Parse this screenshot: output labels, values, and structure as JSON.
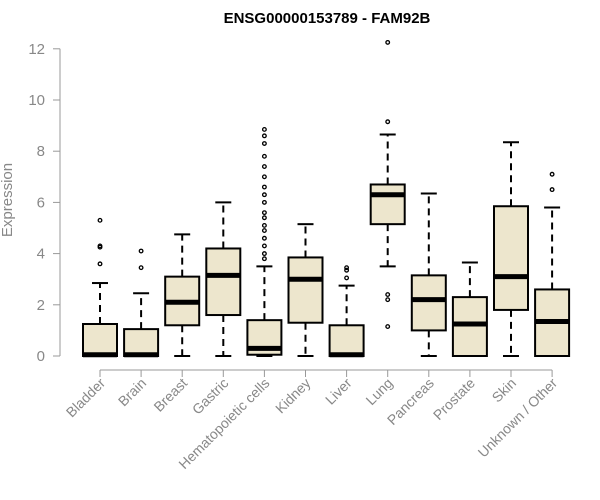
{
  "chart_data": {
    "type": "box",
    "title": "ENSG00000153789 - FAM92B",
    "xlabel": "",
    "ylabel": "Expression",
    "ylim": [
      0,
      12.3
    ],
    "yticks": [
      0,
      2,
      4,
      6,
      8,
      10,
      12
    ],
    "box_fill": "#ede6cd",
    "categories": [
      "Bladder",
      "Brain",
      "Breast",
      "Gastric",
      "Hematopoietic cells",
      "Kidney",
      "Liver",
      "Lung",
      "Pancreas",
      "Prostate",
      "Skin",
      "Unknown / Other"
    ],
    "boxes": [
      {
        "whislo": 0,
        "q1": 0,
        "med": 0.05,
        "q3": 1.25,
        "whishi": 2.85,
        "fliers": [
          3.6,
          4.25,
          4.3,
          5.3
        ]
      },
      {
        "whislo": 0,
        "q1": 0,
        "med": 0.05,
        "q3": 1.05,
        "whishi": 2.45,
        "fliers": [
          3.45,
          4.1
        ]
      },
      {
        "whislo": 0,
        "q1": 1.2,
        "med": 2.1,
        "q3": 3.1,
        "whishi": 4.75,
        "fliers": []
      },
      {
        "whislo": 0,
        "q1": 1.6,
        "med": 3.15,
        "q3": 4.2,
        "whishi": 6.0,
        "fliers": []
      },
      {
        "whislo": 0,
        "q1": 0.05,
        "med": 0.3,
        "q3": 1.4,
        "whishi": 3.5,
        "fliers": [
          3.8,
          4.0,
          4.3,
          4.6,
          4.9,
          5.1,
          5.4,
          5.6,
          6.0,
          6.3,
          6.6,
          7.0,
          7.4,
          7.8,
          8.3,
          8.6,
          8.85
        ]
      },
      {
        "whislo": 0,
        "q1": 1.3,
        "med": 3.0,
        "q3": 3.85,
        "whishi": 5.15,
        "fliers": []
      },
      {
        "whislo": 0,
        "q1": 0,
        "med": 0.05,
        "q3": 1.2,
        "whishi": 2.75,
        "fliers": [
          3.05,
          3.35,
          3.45
        ]
      },
      {
        "whislo": 3.5,
        "q1": 5.15,
        "med": 6.3,
        "q3": 6.7,
        "whishi": 8.65,
        "fliers": [
          1.15,
          2.2,
          2.4,
          9.15,
          12.25
        ]
      },
      {
        "whislo": 0,
        "q1": 1.0,
        "med": 2.2,
        "q3": 3.15,
        "whishi": 6.35,
        "fliers": []
      },
      {
        "whislo": 0,
        "q1": 0,
        "med": 1.25,
        "q3": 2.3,
        "whishi": 3.65,
        "fliers": []
      },
      {
        "whislo": 0,
        "q1": 1.8,
        "med": 3.1,
        "q3": 5.85,
        "whishi": 8.35,
        "fliers": []
      },
      {
        "whislo": 0,
        "q1": 0,
        "med": 1.35,
        "q3": 2.6,
        "whishi": 5.8,
        "fliers": [
          6.5,
          7.1
        ]
      }
    ]
  }
}
